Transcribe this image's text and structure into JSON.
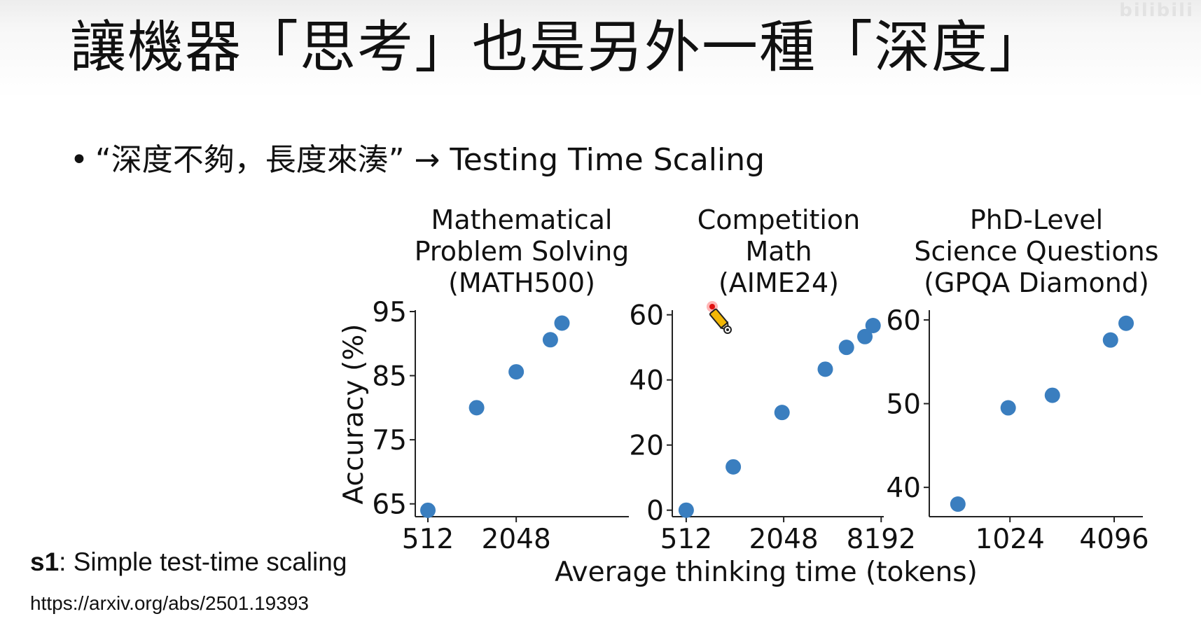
{
  "slide": {
    "title": "讓機器「思考」也是另外一種「深度」",
    "bullet_symbol": "•",
    "bullet_text": "“深度不夠，長度來湊” → Testing Time Scaling",
    "ref_bold": "s1",
    "ref_rest": ": Simple test-time scaling",
    "ref_link": "https://arxiv.org/abs/2501.19393",
    "watermark": "bilibili"
  },
  "colors": {
    "marker": "#3a7ebf",
    "axis": "#222222"
  },
  "chart_data": [
    {
      "type": "scatter",
      "title": "Mathematical\nProblem Solving\n(MATH500)",
      "ylabel": "Accuracy (%)",
      "xscale": "log2",
      "xlim": [
        420,
        12000
      ],
      "ylim": [
        63,
        95
      ],
      "xticks": [
        512,
        2048
      ],
      "xticklabels": [
        "512",
        "2048"
      ],
      "yticks": [
        65,
        75,
        85,
        95
      ],
      "x": [
        512,
        1100,
        2048,
        3500,
        4200
      ],
      "y": [
        64,
        80,
        85.6,
        90.6,
        93.2
      ]
    },
    {
      "type": "scatter",
      "title": "Competition\nMath\n(AIME24)",
      "xscale": "log2",
      "xlim": [
        420,
        8500
      ],
      "ylim": [
        -2,
        61
      ],
      "xticks": [
        512,
        2048,
        8192
      ],
      "xticklabels": [
        "512",
        "2048",
        "8192"
      ],
      "yticks": [
        0,
        20,
        40,
        60
      ],
      "x": [
        512,
        1000,
        2000,
        3700,
        5000,
        6500,
        7300
      ],
      "y": [
        0,
        13.3,
        30,
        43.3,
        50,
        53.3,
        56.7
      ]
    },
    {
      "type": "scatter",
      "title": "PhD-Level\nScience Questions\n(GPQA Diamond)",
      "xscale": "log2",
      "xlim": [
        350,
        6000
      ],
      "ylim": [
        36.5,
        61
      ],
      "xticks": [
        1024,
        4096
      ],
      "xticklabels": [
        "1024",
        "4096"
      ],
      "yticks": [
        40,
        50,
        60
      ],
      "x": [
        512,
        1000,
        1800,
        3900,
        4800
      ],
      "y": [
        38,
        49.5,
        51,
        57.6,
        59.6
      ]
    }
  ],
  "shared_xlabel": "Average thinking time (tokens)"
}
